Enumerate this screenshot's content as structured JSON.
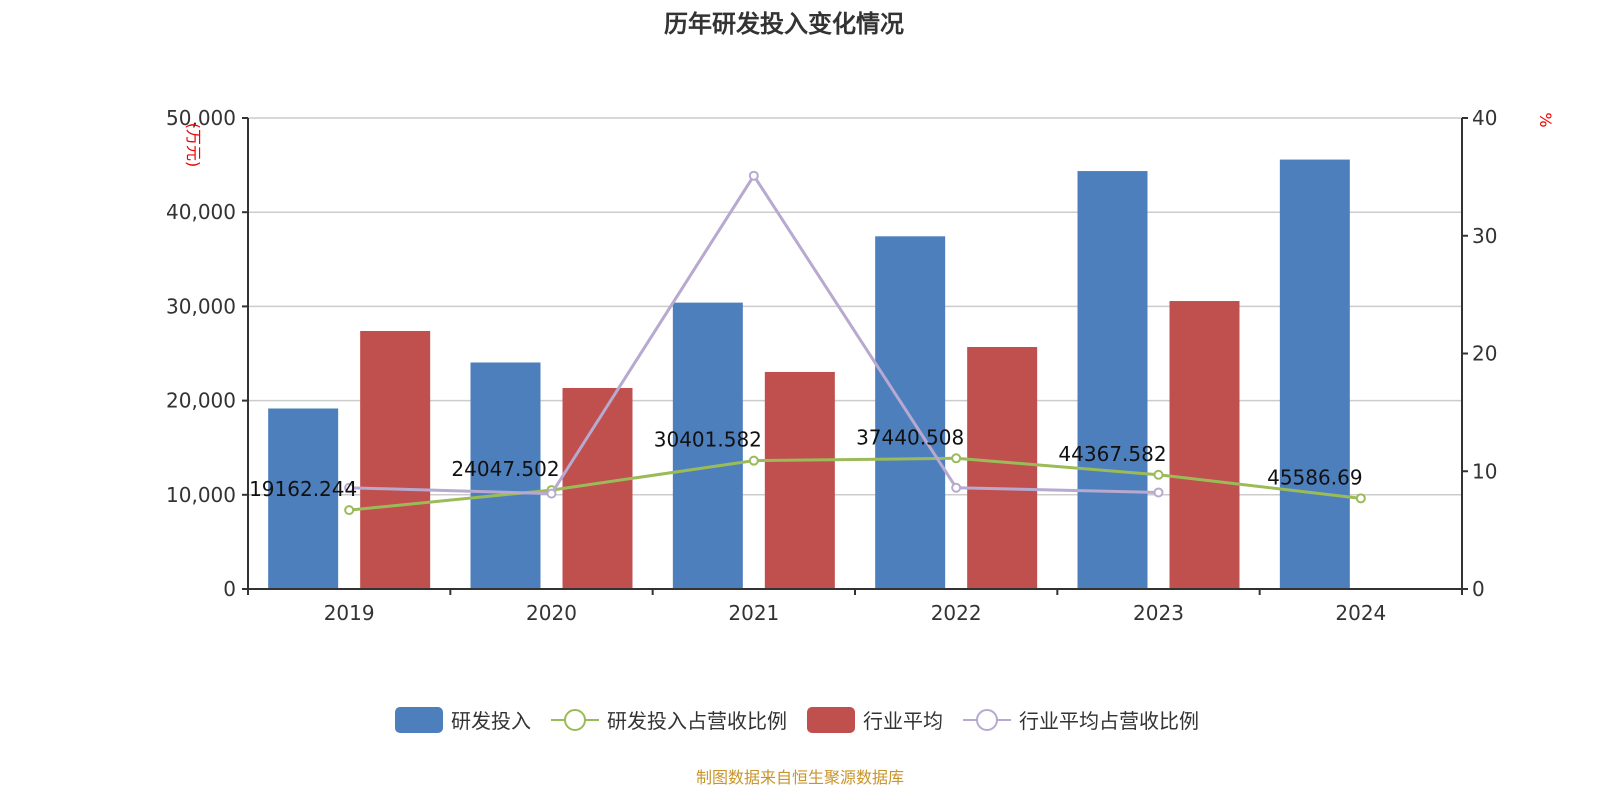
{
  "chart_data": {
    "type": "bar+line",
    "title": "历年研发投入变化情况",
    "categories": [
      "2019",
      "2020",
      "2021",
      "2022",
      "2023",
      "2024"
    ],
    "y_left": {
      "label": "(万元)",
      "range": [
        0,
        50000
      ],
      "ticks": [
        "0",
        "10,000",
        "20,000",
        "30,000",
        "40,000",
        "50,000"
      ]
    },
    "y_right": {
      "label": "%",
      "range": [
        0,
        40
      ],
      "ticks": [
        "0",
        "10",
        "20",
        "30",
        "40"
      ]
    },
    "grid": true,
    "legend_position": "bottom",
    "series": [
      {
        "name": "研发投入",
        "type": "bar",
        "axis": "left",
        "color": "#4e7fbd",
        "values": [
          19162.244,
          24047.502,
          30401.582,
          37440.508,
          44367.582,
          45586.69
        ],
        "labels": [
          "19162.244",
          "24047.502",
          "30401.582",
          "37440.508",
          "44367.582",
          "45586.69"
        ]
      },
      {
        "name": "研发投入占营收比例",
        "type": "line",
        "axis": "right",
        "color": "#9bbb59",
        "values": [
          6.7,
          8.4,
          10.9,
          11.1,
          9.7,
          7.7
        ]
      },
      {
        "name": "行业平均",
        "type": "bar",
        "axis": "left",
        "color": "#c0504d",
        "values": [
          27390,
          21340,
          23040,
          25690,
          30570,
          null
        ]
      },
      {
        "name": "行业平均占营收比例",
        "type": "line",
        "axis": "right",
        "color": "#b7a9cf",
        "values": [
          8.6,
          8.1,
          35.1,
          8.6,
          8.2,
          null
        ]
      }
    ]
  },
  "footer": "制图数据来自恒生聚源数据库"
}
